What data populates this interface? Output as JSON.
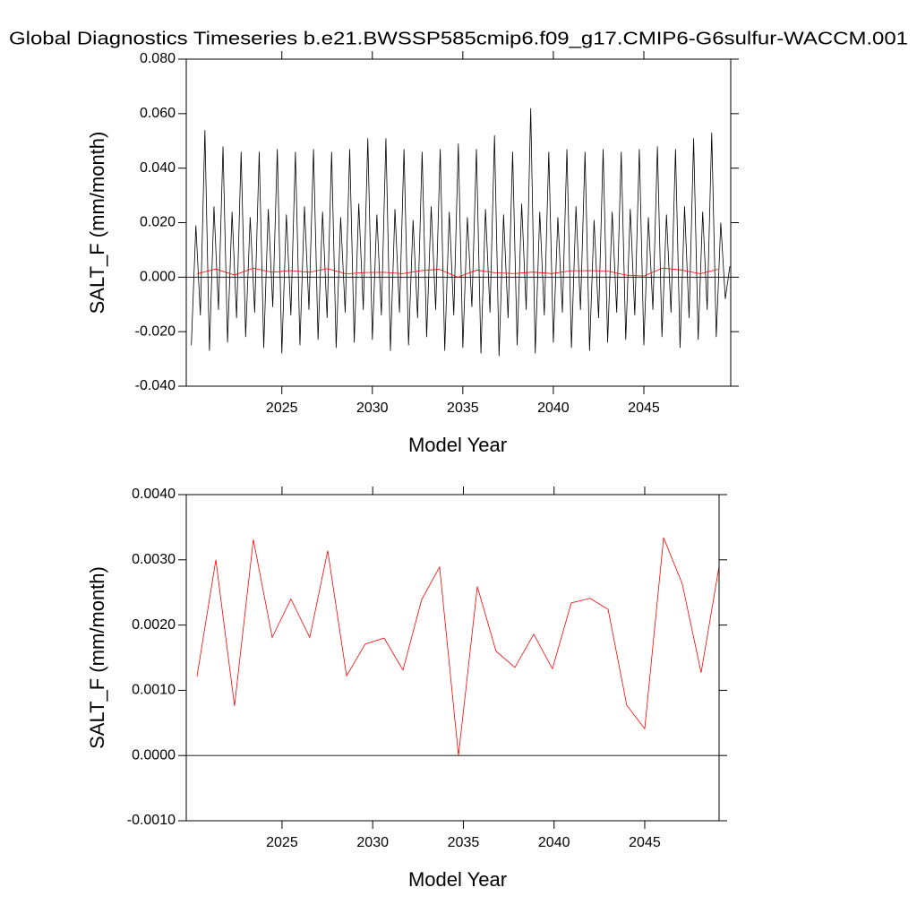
{
  "chart_data": [
    {
      "type": "line",
      "title": "Global Diagnostics Timeseries b.e21.BWSSP585cmip6.f09_g17.CMIP6-G6sulfur-WACCM.001",
      "x_label": "Model Year",
      "y_label": "SALT_F (mm/month)",
      "xlim": [
        2019.72,
        2049.8
      ],
      "xticks": [
        2025,
        2030,
        2035,
        2040,
        2045
      ],
      "ylim": [
        -0.04,
        0.08
      ],
      "yticks": [
        {
          "value": -0.04,
          "label": "-0.040"
        },
        {
          "value": -0.02,
          "label": "-0.020"
        },
        {
          "value": 0,
          "label": "0.000"
        },
        {
          "value": 0.02,
          "label": "0.020"
        },
        {
          "value": 0.04,
          "label": "0.040"
        },
        {
          "value": 0.06,
          "label": "0.060"
        },
        {
          "value": 0.08,
          "label": "0.080"
        }
      ],
      "series": [
        {
          "color": "#000000",
          "x": [
            2020,
            2020.25,
            2020.5,
            2020.75,
            2021,
            2021.25,
            2021.5,
            2021.75,
            2022,
            2022.25,
            2022.5,
            2022.75,
            2023,
            2023.25,
            2023.5,
            2023.75,
            2024,
            2024.25,
            2024.5,
            2024.75,
            2025,
            2025.25,
            2025.5,
            2025.75,
            2026,
            2026.25,
            2026.5,
            2026.75,
            2027,
            2027.25,
            2027.5,
            2027.75,
            2028,
            2028.25,
            2028.5,
            2028.75,
            2029,
            2029.25,
            2029.5,
            2029.75,
            2030,
            2030.25,
            2030.5,
            2030.75,
            2031,
            2031.25,
            2031.5,
            2031.75,
            2032,
            2032.25,
            2032.5,
            2032.75,
            2033,
            2033.25,
            2033.5,
            2033.75,
            2034,
            2034.25,
            2034.5,
            2034.75,
            2035,
            2035.25,
            2035.5,
            2035.75,
            2036,
            2036.25,
            2036.5,
            2036.75,
            2037,
            2037.25,
            2037.5,
            2037.75,
            2038,
            2038.25,
            2038.5,
            2038.75,
            2039,
            2039.25,
            2039.5,
            2039.75,
            2040,
            2040.25,
            2040.5,
            2040.75,
            2041,
            2041.25,
            2041.5,
            2041.75,
            2042,
            2042.25,
            2042.5,
            2042.75,
            2043,
            2043.25,
            2043.5,
            2043.75,
            2044,
            2044.25,
            2044.5,
            2044.75,
            2045,
            2045.25,
            2045.5,
            2045.75,
            2046,
            2046.25,
            2046.5,
            2046.75,
            2047,
            2047.25,
            2047.5,
            2047.75,
            2048,
            2048.25,
            2048.5,
            2048.75,
            2049,
            2049.25,
            2049.5,
            2049.75
          ],
          "values": [
            -0.025,
            0.019,
            -0.014,
            0.054,
            -0.027,
            0.026,
            -0.012,
            0.048,
            -0.024,
            0.024,
            -0.015,
            0.046,
            -0.022,
            0.022,
            -0.013,
            0.046,
            -0.026,
            0.025,
            -0.011,
            0.047,
            -0.028,
            0.023,
            -0.014,
            0.046,
            -0.025,
            0.026,
            -0.012,
            0.047,
            -0.023,
            0.024,
            -0.015,
            0.046,
            -0.026,
            0.022,
            -0.013,
            0.047,
            -0.024,
            0.027,
            -0.012,
            0.051,
            -0.023,
            0.023,
            -0.014,
            0.051,
            -0.027,
            0.025,
            -0.013,
            0.047,
            -0.025,
            0.021,
            -0.015,
            0.046,
            -0.022,
            0.026,
            -0.012,
            0.047,
            -0.027,
            0.024,
            -0.014,
            0.049,
            -0.026,
            0.022,
            -0.011,
            0.047,
            -0.028,
            0.025,
            -0.013,
            0.052,
            -0.029,
            0.023,
            -0.015,
            0.046,
            -0.025,
            0.027,
            -0.012,
            0.062,
            -0.028,
            0.024,
            -0.014,
            0.046,
            -0.024,
            0.022,
            -0.013,
            0.047,
            -0.026,
            0.026,
            -0.012,
            0.046,
            -0.027,
            0.021,
            -0.015,
            0.047,
            -0.024,
            0.024,
            -0.013,
            0.046,
            -0.023,
            0.025,
            -0.014,
            0.047,
            -0.025,
            0.022,
            -0.012,
            0.048,
            -0.022,
            0.023,
            -0.013,
            0.047,
            -0.026,
            0.026,
            -0.015,
            0.051,
            -0.023,
            0.024,
            -0.012,
            0.053,
            -0.022,
            0.02,
            -0.008,
            0.004
          ]
        },
        {
          "color": "#ff0000",
          "x": [
            2020.31,
            2021.35,
            2022.38,
            2023.42,
            2024.46,
            2025.49,
            2026.53,
            2027.52,
            2028.56,
            2029.59,
            2030.63,
            2031.67,
            2032.7,
            2033.69,
            2034.73,
            2035.77,
            2036.8,
            2037.84,
            2038.88,
            2039.91,
            2040.95,
            2041.99,
            2042.98,
            2044.01,
            2045,
            2046.04,
            2047.07,
            2048.11,
            2049.1
          ],
          "values": [
            0.00121,
            0.003,
            0.00076,
            0.00331,
            0.00181,
            0.0024,
            0.00181,
            0.00314,
            0.00122,
            0.00171,
            0.0018,
            0.00131,
            0.00239,
            0.00289,
            0.0,
            0.00259,
            0.0016,
            0.00135,
            0.00186,
            0.00133,
            0.00234,
            0.00241,
            0.00224,
            0.00077,
            0.00041,
            0.00334,
            0.00263,
            0.00127,
            0.0029
          ]
        }
      ]
    },
    {
      "type": "line",
      "x_label": "Model Year",
      "y_label": "SALT_F (mm/month)",
      "xlim": [
        2019.72,
        2049.1
      ],
      "xticks": [
        2025,
        2030,
        2035,
        2040,
        2045
      ],
      "ylim": [
        -0.001,
        0.004
      ],
      "yticks": [
        {
          "value": -0.001,
          "label": "-0.0010"
        },
        {
          "value": 0,
          "label": "0.0000"
        },
        {
          "value": 0.001,
          "label": "0.0010"
        },
        {
          "value": 0.002,
          "label": "0.0020"
        },
        {
          "value": 0.003,
          "label": "0.0030"
        },
        {
          "value": 0.004,
          "label": "0.0040"
        }
      ],
      "series": [
        {
          "color": "#ff0000",
          "x": [
            2020.31,
            2021.35,
            2022.38,
            2023.42,
            2024.46,
            2025.49,
            2026.53,
            2027.52,
            2028.56,
            2029.59,
            2030.63,
            2031.67,
            2032.7,
            2033.69,
            2034.73,
            2035.77,
            2036.8,
            2037.84,
            2038.88,
            2039.91,
            2040.95,
            2041.99,
            2042.98,
            2044.01,
            2045,
            2046.04,
            2047.07,
            2048.11,
            2049.1
          ],
          "values": [
            0.00121,
            0.003,
            0.00076,
            0.00331,
            0.00181,
            0.0024,
            0.00181,
            0.00314,
            0.00122,
            0.00171,
            0.0018,
            0.00131,
            0.00239,
            0.00289,
            0.0,
            0.00259,
            0.0016,
            0.00135,
            0.00186,
            0.00133,
            0.00234,
            0.00241,
            0.00224,
            0.00077,
            0.00041,
            0.00334,
            0.00263,
            0.00127,
            0.0029
          ]
        }
      ]
    }
  ]
}
